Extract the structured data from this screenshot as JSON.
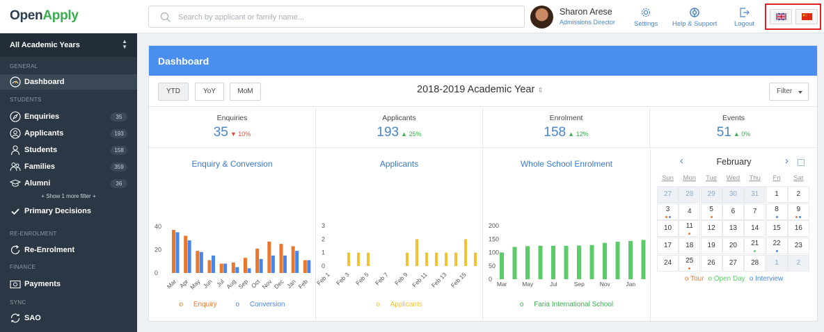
{
  "app": {
    "logo_part1": "Open",
    "logo_part2": "Apply",
    "brand_green": "#3aae4e",
    "brand_dark": "#2c3e50"
  },
  "search": {
    "placeholder": "Search by applicant or family name..."
  },
  "user": {
    "name": "Sharon Arese",
    "role": "Admissions Director"
  },
  "topnav": {
    "settings": "Settings",
    "help": "Help & Support",
    "logout": "Logout"
  },
  "languages": [
    {
      "icon": "uk-flag-icon"
    },
    {
      "icon": "china-flag-icon"
    }
  ],
  "sidebar": {
    "year_selector": "All Academic Years",
    "sections": {
      "general": "GENERAL",
      "students": "STUDENTS",
      "reenrolment": "RE-ENROLMENT",
      "finance": "FINANCE",
      "sync": "SYNC"
    },
    "items": [
      {
        "label": "Dashboard",
        "icon": "dashboard-gauge-icon"
      },
      {
        "label": "Enquiries",
        "icon": "compass-icon",
        "count": "35"
      },
      {
        "label": "Applicants",
        "icon": "user-circle-icon",
        "count": "193"
      },
      {
        "label": "Students",
        "icon": "student-icon",
        "count": "158"
      },
      {
        "label": "Families",
        "icon": "family-icon",
        "count": "359"
      },
      {
        "label": "Alumni",
        "icon": "graduation-cap-icon",
        "count": "36"
      },
      {
        "label": "Primary Decisions",
        "icon": "checkmark-icon"
      },
      {
        "label": "Re-Enrolment",
        "icon": "refresh-icon"
      },
      {
        "label": "Payments",
        "icon": "payments-icon"
      },
      {
        "label": "SAO",
        "icon": "sync-icon"
      }
    ],
    "more_filter": "+ Show 1 more filter +"
  },
  "dashboard": {
    "title": "Dashboard",
    "header_color": "#4a8ff0",
    "period_buttons": [
      "YTD",
      "YoY",
      "MoM"
    ],
    "active_period": "YTD",
    "academic_year": "2018-2019 Academic Year",
    "filter_label": "Filter"
  },
  "stats": [
    {
      "label": "Enquiries",
      "value": "35",
      "change": "10%",
      "direction": "down"
    },
    {
      "label": "Applicants",
      "value": "193",
      "change": "25%",
      "direction": "up"
    },
    {
      "label": "Enrolment",
      "value": "158",
      "change": "12%",
      "direction": "up"
    },
    {
      "label": "Events",
      "value": "51",
      "change": "0%",
      "direction": "up"
    }
  ],
  "chart_data": [
    {
      "type": "bar",
      "title": "Enquiry & Conversion",
      "categories": [
        "Mar",
        "Apr",
        "May",
        "Jun",
        "Jul",
        "Aug",
        "Sep",
        "Oct",
        "Nov",
        "Dec",
        "Jan",
        "Feb"
      ],
      "x_tick_labels": [
        "Mar",
        "Apr",
        "May",
        "Jun",
        "Jul",
        "Aug",
        "Sep",
        "Oct",
        "Nov",
        "Dec",
        "Jan",
        "Feb"
      ],
      "ylim": [
        0,
        40
      ],
      "y_ticks": [
        "0",
        "20",
        "40"
      ],
      "grid": false,
      "legend_position": "bottom",
      "series": [
        {
          "name": "Enquiry",
          "color": "#e8782e",
          "values": [
            37,
            32,
            19,
            11,
            8,
            9,
            13,
            21,
            27,
            25,
            23,
            11
          ]
        },
        {
          "name": "Conversion",
          "color": "#4a86e8",
          "values": [
            35,
            28,
            18,
            15,
            8,
            5,
            4,
            12,
            15,
            15,
            19,
            11
          ]
        }
      ]
    },
    {
      "type": "bar",
      "title": "Applicants",
      "x": [
        "Feb 1",
        "Feb 2",
        "Feb 3",
        "Feb 4",
        "Feb 5",
        "Feb 6",
        "Feb 7",
        "Feb 8",
        "Feb 9",
        "Feb 10",
        "Feb 11",
        "Feb 12",
        "Feb 13",
        "Feb 14",
        "Feb 15",
        "Feb 16"
      ],
      "x_tick_labels": [
        "Feb 1",
        "Feb 3",
        "Feb 5",
        "Feb 7",
        "Feb 9",
        "Feb 11",
        "Feb 13",
        "Feb 15"
      ],
      "ylim": [
        0,
        3
      ],
      "y_ticks": [
        "0",
        "1",
        "2",
        "3"
      ],
      "grid": false,
      "legend_position": "bottom",
      "series": [
        {
          "name": "Applicants",
          "color": "#f2c232",
          "values": [
            0,
            0,
            1,
            1,
            1,
            0,
            0,
            0,
            1,
            2,
            1,
            1,
            1,
            1,
            2,
            1
          ]
        }
      ]
    },
    {
      "type": "bar",
      "title": "Whole School Enrolment",
      "categories": [
        "Mar",
        "Apr",
        "May",
        "Jun",
        "Jul",
        "Aug",
        "Sep",
        "Oct",
        "Nov",
        "Dec",
        "Jan",
        "Feb"
      ],
      "x_tick_labels": [
        "Mar",
        "May",
        "Jul",
        "Sep",
        "Nov",
        "Jan"
      ],
      "ylim": [
        0,
        200
      ],
      "y_ticks": [
        "0",
        "50",
        "100",
        "150",
        "200"
      ],
      "grid": false,
      "legend_position": "bottom",
      "series": [
        {
          "name": "Faria International School",
          "color": "#5ecb6a",
          "values": [
            100,
            121,
            124,
            125,
            125,
            125,
            126,
            128,
            136,
            140,
            143,
            147
          ]
        }
      ]
    }
  ],
  "calendar": {
    "month": "February",
    "weekdays": [
      "Sun",
      "Mon",
      "Tue",
      "Wed",
      "Thu",
      "Fri",
      "Sat"
    ],
    "weeks": [
      [
        {
          "d": "27",
          "o": true
        },
        {
          "d": "28",
          "o": true
        },
        {
          "d": "29",
          "o": true
        },
        {
          "d": "30",
          "o": true
        },
        {
          "d": "31",
          "o": true
        },
        {
          "d": "1"
        },
        {
          "d": "2"
        }
      ],
      [
        {
          "d": "3",
          "dots": [
            "tour",
            "interview"
          ]
        },
        {
          "d": "4"
        },
        {
          "d": "5",
          "dots": [
            "tour"
          ]
        },
        {
          "d": "6"
        },
        {
          "d": "7"
        },
        {
          "d": "8",
          "dots": [
            "interview"
          ]
        },
        {
          "d": "9",
          "dots": [
            "tour",
            "interview"
          ]
        }
      ],
      [
        {
          "d": "10"
        },
        {
          "d": "11",
          "dots": [
            "tour"
          ]
        },
        {
          "d": "12"
        },
        {
          "d": "13"
        },
        {
          "d": "14"
        },
        {
          "d": "15"
        },
        {
          "d": "16"
        }
      ],
      [
        {
          "d": "17"
        },
        {
          "d": "18"
        },
        {
          "d": "19"
        },
        {
          "d": "20"
        },
        {
          "d": "21",
          "dots": [
            "openday"
          ]
        },
        {
          "d": "22",
          "dots": [
            "interview"
          ]
        },
        {
          "d": "23"
        }
      ],
      [
        {
          "d": "24"
        },
        {
          "d": "25",
          "dots": [
            "tour"
          ]
        },
        {
          "d": "26"
        },
        {
          "d": "27"
        },
        {
          "d": "28"
        },
        {
          "d": "1",
          "o": true
        },
        {
          "d": "2",
          "o": true
        }
      ]
    ],
    "legend": [
      {
        "key": "tour",
        "label": "Tour",
        "color": "#e8782e"
      },
      {
        "key": "openday",
        "label": "Open Day",
        "color": "#5ecb6a"
      },
      {
        "key": "interview",
        "label": "Interview",
        "color": "#4a86e8"
      }
    ]
  }
}
